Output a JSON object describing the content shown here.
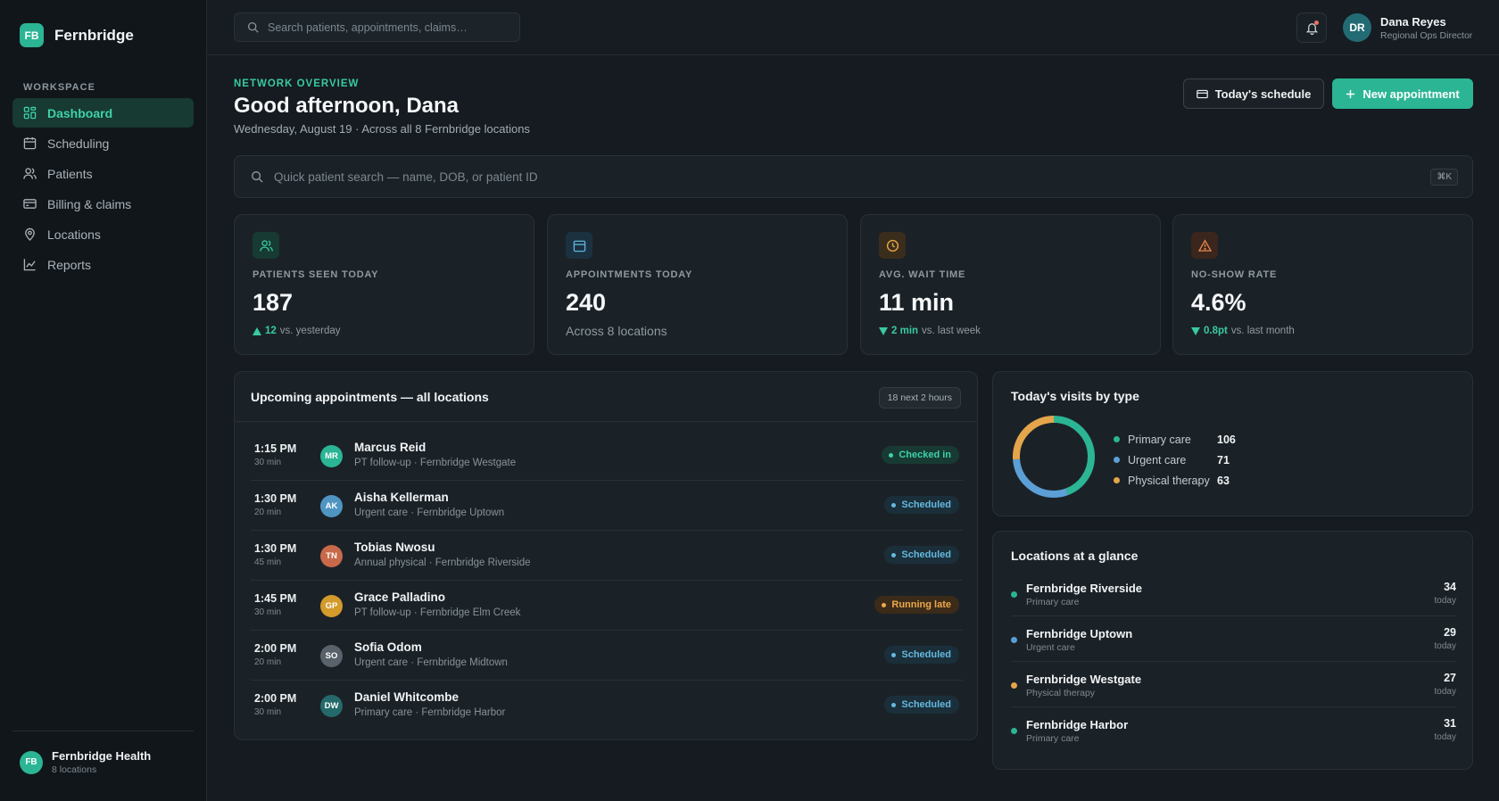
{
  "sidebar": {
    "brand_initials": "FB",
    "brand_name": "Fernbridge",
    "section_label": "WORKSPACE",
    "items": [
      {
        "label": "Dashboard",
        "icon": "dashboard-icon"
      },
      {
        "label": "Scheduling",
        "icon": "calendar-icon"
      },
      {
        "label": "Patients",
        "icon": "users-icon"
      },
      {
        "label": "Billing & claims",
        "icon": "credit-card-icon"
      },
      {
        "label": "Locations",
        "icon": "map-pin-icon"
      },
      {
        "label": "Reports",
        "icon": "chart-icon"
      }
    ],
    "org": {
      "initials": "FB",
      "name": "Fernbridge Health",
      "sub": "8 locations"
    }
  },
  "topbar": {
    "search_placeholder": "Search patients, appointments, claims…",
    "user": {
      "initials": "DR",
      "name": "Dana Reyes",
      "role": "Regional Ops Director"
    }
  },
  "header": {
    "eyebrow": "NETWORK OVERVIEW",
    "greeting": "Good afternoon, Dana",
    "subline": "Wednesday, August 19 · Across all 8 Fernbridge locations",
    "schedule_button": "Today's schedule",
    "new_button": "New appointment"
  },
  "quick_search": {
    "placeholder": "Quick patient search — name, DOB, or patient ID",
    "shortcut": "⌘K"
  },
  "kpis": [
    {
      "label": "PATIENTS SEEN TODAY",
      "value": "187",
      "delta": "12",
      "delta_dir": "up",
      "suffix": "vs. yesterday",
      "icon": "users-icon",
      "accent": "#39c9a3",
      "bg": "#173a32"
    },
    {
      "label": "APPOINTMENTS TODAY",
      "value": "240",
      "plain_sub": "Across 8 locations",
      "icon": "calendar-icon",
      "accent": "#5fb4dc",
      "bg": "#1b3140"
    },
    {
      "label": "AVG. WAIT TIME",
      "value": "11 min",
      "delta": "2 min",
      "delta_dir": "down",
      "suffix": "vs. last week",
      "icon": "clock-icon",
      "accent": "#e7a447",
      "bg": "#3a2d1b"
    },
    {
      "label": "NO-SHOW RATE",
      "value": "4.6%",
      "delta": "0.8pt",
      "delta_dir": "down",
      "suffix": "vs. last month",
      "icon": "alert-icon",
      "accent": "#ea8a52",
      "bg": "#3a261c"
    }
  ],
  "appointments": {
    "title": "Upcoming appointments — all locations",
    "count_badge": "18 next 2 hours",
    "rows": [
      {
        "time": "1:15 PM",
        "duration": "30 min",
        "initials": "MR",
        "avatar_color": "#2bb594",
        "name": "Marcus Reid",
        "desc": "PT follow-up · Fernbridge Westgate",
        "status": "Checked in",
        "status_kind": "checked"
      },
      {
        "time": "1:30 PM",
        "duration": "20 min",
        "initials": "AK",
        "avatar_color": "#4f95c2",
        "name": "Aisha Kellerman",
        "desc": "Urgent care · Fernbridge Uptown",
        "status": "Scheduled",
        "status_kind": "scheduled"
      },
      {
        "time": "1:30 PM",
        "duration": "45 min",
        "initials": "TN",
        "avatar_color": "#c8694a",
        "name": "Tobias Nwosu",
        "desc": "Annual physical · Fernbridge Riverside",
        "status": "Scheduled",
        "status_kind": "scheduled"
      },
      {
        "time": "1:45 PM",
        "duration": "30 min",
        "initials": "GP",
        "avatar_color": "#d39a2c",
        "name": "Grace Palladino",
        "desc": "PT follow-up · Fernbridge Elm Creek",
        "status": "Running late",
        "status_kind": "late"
      },
      {
        "time": "2:00 PM",
        "duration": "20 min",
        "initials": "SO",
        "avatar_color": "#59626a",
        "name": "Sofia Odom",
        "desc": "Urgent care · Fernbridge Midtown",
        "status": "Scheduled",
        "status_kind": "scheduled"
      },
      {
        "time": "2:00 PM",
        "duration": "30 min",
        "initials": "DW",
        "avatar_color": "#256a6a",
        "name": "Daniel Whitcombe",
        "desc": "Primary care · Fernbridge Harbor",
        "status": "Scheduled",
        "status_kind": "scheduled"
      }
    ]
  },
  "visits": {
    "title": "Today's visits by type",
    "colors": {
      "primary": "#2bb594",
      "urgent": "#5b9fd6",
      "pt": "#e4a54b"
    },
    "items": [
      {
        "name": "Primary care",
        "value": 106,
        "color": "#2bb594"
      },
      {
        "name": "Urgent care",
        "value": 71,
        "color": "#5b9fd6"
      },
      {
        "name": "Physical therapy",
        "value": 63,
        "color": "#e4a54b"
      }
    ]
  },
  "locations": {
    "title": "Locations at a glance",
    "items": [
      {
        "name": "Fernbridge Riverside",
        "type": "Primary care",
        "count": "34",
        "unit": "today",
        "color": "#2bb594"
      },
      {
        "name": "Fernbridge Uptown",
        "type": "Urgent care",
        "count": "29",
        "unit": "today",
        "color": "#5b9fd6"
      },
      {
        "name": "Fernbridge Westgate",
        "type": "Physical therapy",
        "count": "27",
        "unit": "today",
        "color": "#e4a54b"
      },
      {
        "name": "Fernbridge Harbor",
        "type": "Primary care",
        "count": "31",
        "unit": "today",
        "color": "#2bb594"
      }
    ]
  }
}
